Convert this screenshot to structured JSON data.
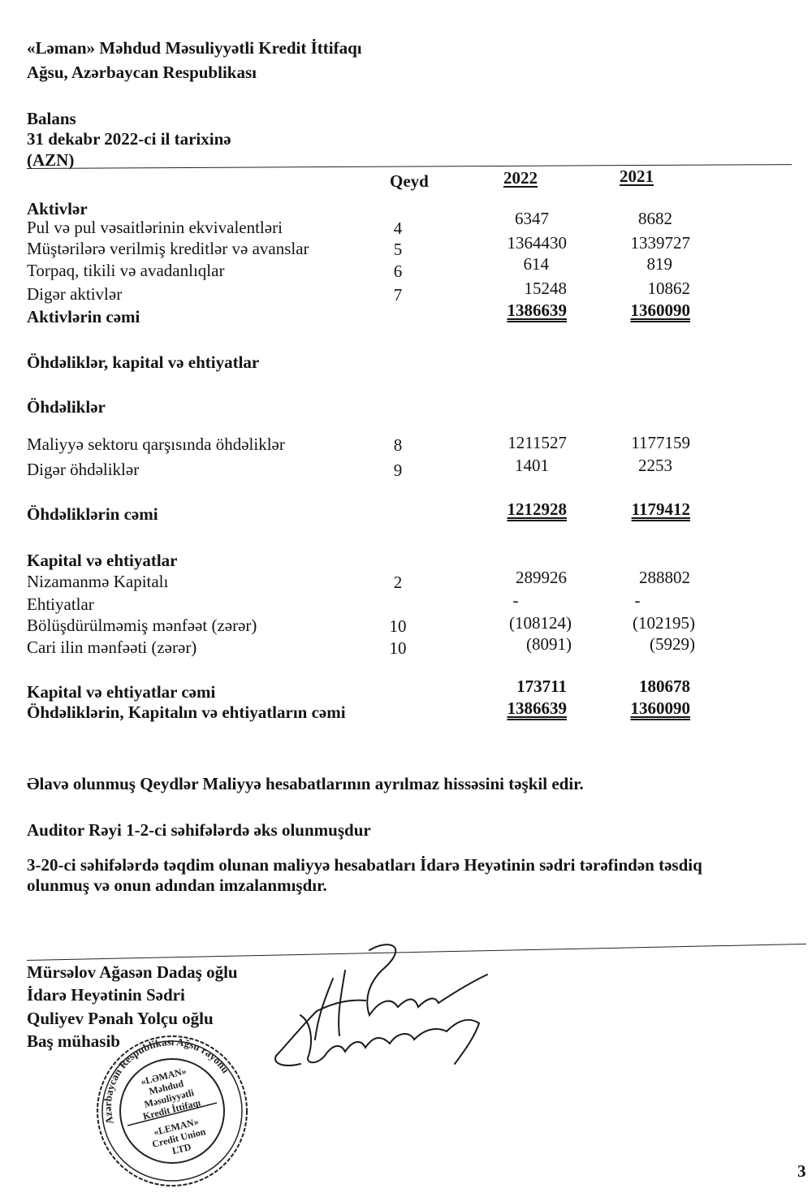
{
  "header": {
    "company": "«Ləman» Məhdud Məsuliyyətli Kredit İttifaqı",
    "location": "Ağsu, Azərbaycan Respublikası",
    "statement_title": "Balans",
    "date": "31 dekabr 2022-ci il tarixinə",
    "currency": "(AZN)"
  },
  "columns": {
    "note": "Qeyd",
    "y2022": "2022",
    "y2021": "2021"
  },
  "rows": [
    {
      "label": "Aktivlər",
      "style": "heading"
    },
    {
      "label": "Pul və pul vəsaitlərinin ekvivalentləri",
      "note": "4",
      "y2022": "6347",
      "y2021": "8682"
    },
    {
      "label": "Müştərilərə verilmiş kreditlər və avanslar",
      "note": "5",
      "y2022": "1364430",
      "y2021": "1339727"
    },
    {
      "label": "Torpaq, tikili və avadanlıqlar",
      "note": "6",
      "y2022": "614",
      "y2021": "819"
    },
    {
      "label": "Digər aktivlər",
      "note": "7",
      "y2022": "15248",
      "y2021": "10862"
    },
    {
      "label": "Aktivlərin cəmi",
      "style": "total",
      "y2022": "1386639",
      "y2021": "1360090"
    },
    {
      "label": "Öhdəliklər, kapital və ehtiyatlar",
      "style": "heading"
    },
    {
      "label": "Öhdəliklər",
      "style": "heading"
    },
    {
      "label": "Maliyyə sektoru qarşısında öhdəliklər",
      "note": "8",
      "y2022": "1211527",
      "y2021": "1177159"
    },
    {
      "label": "Digər öhdəliklər",
      "note": "9",
      "y2022": "1401",
      "y2021": "2253"
    },
    {
      "label": "Öhdəliklərin cəmi",
      "style": "subtotal",
      "y2022": "1212928",
      "y2021": "1179412"
    },
    {
      "label": "Kapital və ehtiyatlar",
      "style": "heading"
    },
    {
      "label": "Nizamanmə Kapitalı",
      "note": "2",
      "y2022": "289926",
      "y2021": "288802"
    },
    {
      "label": "Ehtiyatlar",
      "y2022": "-",
      "y2021": "-"
    },
    {
      "label": "Bölüşdürülməmiş mənfəət (zərər)",
      "note": "10",
      "y2022": "(108124)",
      "y2021": "(102195)"
    },
    {
      "label": "Cari ilin mənfəəti (zərər)",
      "note": "10",
      "y2022": "(8091)",
      "y2021": "(5929)"
    },
    {
      "label": "Kapital və ehtiyatlar cəmi",
      "style": "heading",
      "y2022": "173711",
      "y2021": "180678"
    },
    {
      "label": "Öhdəliklərin, Kapitalın və ehtiyatların cəmi",
      "style": "total",
      "y2022": "1386639",
      "y2021": "1360090"
    }
  ],
  "notes": {
    "line1": "Əlavə olunmuş Qeydlər Maliyyə hesabatlarının ayrılmaz hissəsini təşkil edir.",
    "line2": "Auditor Rəyi 1-2-ci səhifələrdə əks olunmuşdur",
    "line3a": "3-20-ci səhifələrdə təqdim olunan maliyyə hesabatları İdarə Heyətinin sədri tərəfindən təsdiq",
    "line3b": "olunmuş və onun adından imzalanmışdır."
  },
  "signatories": [
    {
      "name": "Mürsəlov Ağasən Dadaş oğlu",
      "title": "İdarə Heyətinin Sədri"
    },
    {
      "name": "Quliyev Pənah Yolçu oğlu",
      "title": "Baş mühasib"
    }
  ],
  "stamp": {
    "ring": "Azərbaycan Respublikası Ağsu rayonu",
    "center_az": "«LƏMAN» Məhdud Məsuliyyətli Kredit İttifaqı",
    "center_en": "«LEMAN» Credit Union LTD"
  },
  "page_number": "3"
}
